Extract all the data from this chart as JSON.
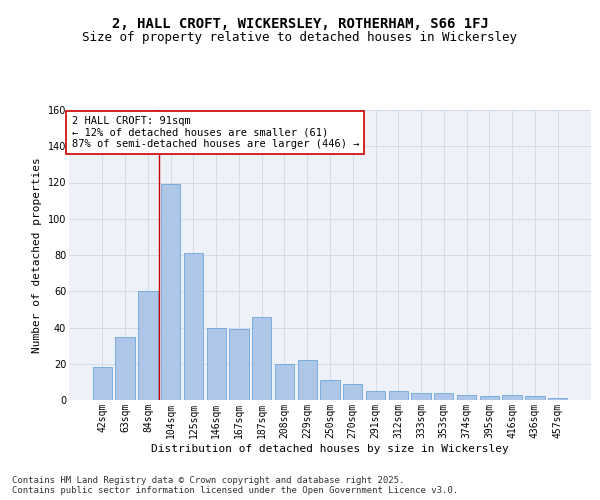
{
  "title1": "2, HALL CROFT, WICKERSLEY, ROTHERHAM, S66 1FJ",
  "title2": "Size of property relative to detached houses in Wickersley",
  "xlabel": "Distribution of detached houses by size in Wickersley",
  "ylabel": "Number of detached properties",
  "categories": [
    "42sqm",
    "63sqm",
    "84sqm",
    "104sqm",
    "125sqm",
    "146sqm",
    "167sqm",
    "187sqm",
    "208sqm",
    "229sqm",
    "250sqm",
    "270sqm",
    "291sqm",
    "312sqm",
    "333sqm",
    "353sqm",
    "374sqm",
    "395sqm",
    "416sqm",
    "436sqm",
    "457sqm"
  ],
  "values": [
    18,
    35,
    60,
    119,
    81,
    40,
    39,
    46,
    20,
    22,
    11,
    9,
    5,
    5,
    4,
    4,
    3,
    2,
    3,
    2,
    1
  ],
  "bar_color": "#aec6e8",
  "bar_edge_color": "#5b9bd5",
  "vline_index": 2,
  "vline_color": "#cc0000",
  "annotation_text": "2 HALL CROFT: 91sqm\n← 12% of detached houses are smaller (61)\n87% of semi-detached houses are larger (446) →",
  "annotation_box_color": "#ffffff",
  "annotation_box_edge": "#cc0000",
  "ylim": [
    0,
    160
  ],
  "yticks": [
    0,
    20,
    40,
    60,
    80,
    100,
    120,
    140,
    160
  ],
  "grid_color": "#d0d8e8",
  "background_color": "#eef2f8",
  "footer": "Contains HM Land Registry data © Crown copyright and database right 2025.\nContains public sector information licensed under the Open Government Licence v3.0.",
  "title1_fontsize": 10,
  "title2_fontsize": 9,
  "xlabel_fontsize": 8,
  "ylabel_fontsize": 8,
  "tick_fontsize": 7,
  "annotation_fontsize": 7.5,
  "footer_fontsize": 6.5
}
